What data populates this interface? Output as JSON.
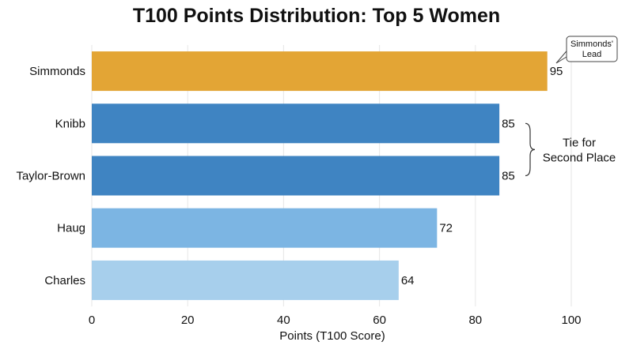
{
  "chart_data": {
    "type": "bar",
    "orientation": "horizontal",
    "title": "T100 Points Distribution: Top 5 Women",
    "xlabel": "Points (T100 Score)",
    "ylabel": "",
    "categories": [
      "Simmonds",
      "Knibb",
      "Taylor-Brown",
      "Haug",
      "Charles"
    ],
    "values": [
      95,
      85,
      85,
      72,
      64
    ],
    "bar_colors": [
      "#E3A535",
      "#3F84C2",
      "#3F84C2",
      "#7CB5E3",
      "#A7CFEC"
    ],
    "xlim": [
      0,
      100
    ],
    "xticks": [
      0,
      20,
      40,
      60,
      80,
      100
    ],
    "grid": "vertical",
    "annotations": {
      "callout_lines": [
        "Simmonds'",
        "Lead"
      ],
      "bracket_lines": [
        "Tie for",
        "Second Place"
      ]
    }
  }
}
